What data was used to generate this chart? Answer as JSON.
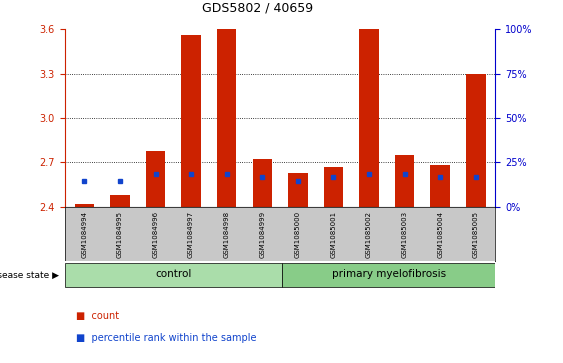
{
  "title": "GDS5802 / 40659",
  "samples": [
    "GSM1084994",
    "GSM1084995",
    "GSM1084996",
    "GSM1084997",
    "GSM1084998",
    "GSM1084999",
    "GSM1085000",
    "GSM1085001",
    "GSM1085002",
    "GSM1085003",
    "GSM1085004",
    "GSM1085005"
  ],
  "red_bar_top": [
    2.42,
    2.48,
    2.78,
    3.56,
    3.6,
    2.72,
    2.63,
    2.67,
    3.6,
    2.75,
    2.68,
    3.3
  ],
  "blue_y": [
    2.575,
    2.575,
    2.62,
    2.62,
    2.62,
    2.6,
    2.575,
    2.6,
    2.62,
    2.62,
    2.6,
    2.6
  ],
  "ylim_left": [
    2.4,
    3.6
  ],
  "ylim_right": [
    0,
    100
  ],
  "yticks_left": [
    2.4,
    2.7,
    3.0,
    3.3,
    3.6
  ],
  "yticks_right": [
    0,
    25,
    50,
    75,
    100
  ],
  "bar_bottom": 2.4,
  "bar_color": "#cc2200",
  "blue_color": "#1144cc",
  "bg_color": "#ffffff",
  "control_bg": "#aaddaa",
  "mf_bg": "#88cc88",
  "label_color_left": "#cc2200",
  "label_color_right": "#0000cc",
  "n_control": 6,
  "n_mf": 6,
  "disease_state_label": "disease state",
  "legend_count": "count",
  "legend_percentile": "percentile rank within the sample",
  "group_label_control": "control",
  "group_label_mf": "primary myelofibrosis"
}
